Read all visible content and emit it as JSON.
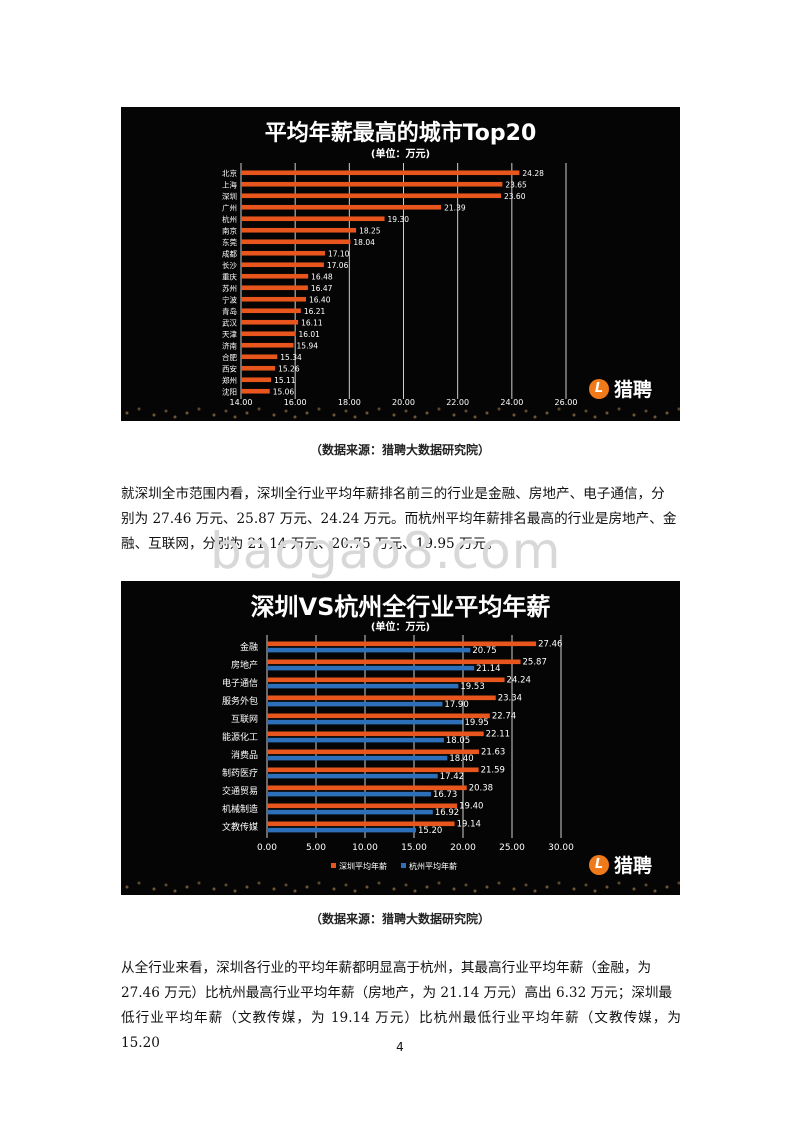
{
  "chart_data": [
    {
      "type": "bar",
      "orientation": "horizontal",
      "title": "平均年薪最高的城市Top20",
      "subtitle": "(单位：万元)",
      "categories": [
        "北京",
        "上海",
        "深圳",
        "广州",
        "杭州",
        "南京",
        "东莞",
        "成都",
        "长沙",
        "重庆",
        "苏州",
        "宁波",
        "青岛",
        "武汉",
        "天津",
        "济南",
        "合肥",
        "西安",
        "郑州",
        "沈阳"
      ],
      "values": [
        24.28,
        23.65,
        23.6,
        21.39,
        19.3,
        18.25,
        18.04,
        17.1,
        17.06,
        16.48,
        16.47,
        16.4,
        16.21,
        16.11,
        16.01,
        15.94,
        15.34,
        15.26,
        15.11,
        15.06
      ],
      "value_labels": [
        "24.28",
        "23.65",
        "23.60",
        "21.39",
        "19.30",
        "18.25",
        "18.04",
        "17.10",
        "17.06",
        "16.48",
        "16.47",
        "16.40",
        "16.21",
        "16.11",
        "16.01",
        "15.94",
        "15.34",
        "15.26",
        "15.11",
        "15.06"
      ],
      "xlim": [
        14,
        26
      ],
      "xticks": [
        "14.00",
        "16.00",
        "18.00",
        "20.00",
        "22.00",
        "24.00",
        "26.00"
      ],
      "grid": true,
      "bar_color": "#e8561d",
      "background": "#050505"
    },
    {
      "type": "bar",
      "orientation": "horizontal",
      "title": "深圳VS杭州全行业平均年薪",
      "subtitle": "(单位：万元)",
      "categories": [
        "金融",
        "房地产",
        "电子通信",
        "服务外包",
        "互联网",
        "能源化工",
        "消费品",
        "制药医疗",
        "交通贸易",
        "机械制造",
        "文教传媒"
      ],
      "series": [
        {
          "name": "深圳平均年薪",
          "color": "#e8561d",
          "values": [
            27.46,
            25.87,
            24.24,
            23.34,
            22.74,
            22.11,
            21.63,
            21.59,
            20.38,
            19.4,
            19.14
          ],
          "labels": [
            "27.46",
            "25.87",
            "24.24",
            "23.34",
            "22.74",
            "22.11",
            "21.63",
            "21.59",
            "20.38",
            "19.40",
            "19.14"
          ]
        },
        {
          "name": "杭州平均年薪",
          "color": "#2d6fb8",
          "values": [
            20.75,
            21.14,
            19.53,
            17.9,
            19.95,
            18.05,
            18.4,
            17.42,
            16.73,
            16.92,
            15.2
          ],
          "labels": [
            "20.75",
            "21.14",
            "19.53",
            "17.90",
            "19.95",
            "18.05",
            "18.40",
            "17.42",
            "16.73",
            "16.92",
            "15.20"
          ]
        }
      ],
      "xlim": [
        0,
        30
      ],
      "xticks": [
        "0.00",
        "5.00",
        "10.00",
        "15.00",
        "20.00",
        "25.00",
        "30.00"
      ],
      "grid": true,
      "legend_position": "bottom",
      "background": "#050505"
    }
  ],
  "brand": {
    "name": "猎聘",
    "icon": "L"
  },
  "caption1": "（数据来源：猎聘大数据研究院）",
  "caption2": "（数据来源：猎聘大数据研究院）",
  "paragraph1_lines": [
    "就深圳全市范围内看，深圳全行业平均年薪排名前三的行业是金融、房地产、电子通信，分",
    "别为 27.46 万元、25.87 万元、24.24 万元。而杭州平均年薪排名最高的行业是房地产、金",
    "融、互联网，分别为 21.14 万元、20.75 万元、19.95 万元。"
  ],
  "paragraph2_lines": [
    "从全行业来看，深圳各行业的平均年薪都明显高于杭州，其最高行业平均年薪（金融，为",
    "27.46 万元）比杭州最高行业平均年薪（房地产，为 21.14 万元）高出 6.32 万元；深圳最",
    "低行业平均年薪（文教传媒，为 19.14 万元）比杭州最低行业平均年薪（文教传媒，为 15.20"
  ],
  "watermark": "baogao8.com",
  "page_number": "4"
}
